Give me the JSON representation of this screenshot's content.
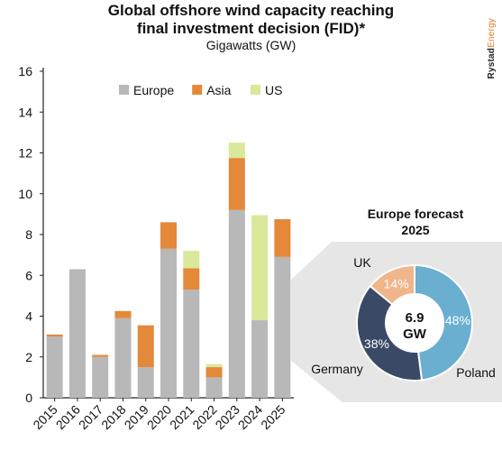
{
  "title_line1": "Global offshore wind capacity reaching",
  "title_line2": "final investment decision (FID)*",
  "subtitle": "Gigawatts (GW)",
  "brand": {
    "part1": "Rystad",
    "part2": "Energy"
  },
  "colors": {
    "europe": "#b8b8b8",
    "asia": "#e4883a",
    "us": "#d9e89a",
    "uk": "#f0b58a",
    "germany": "#3a4a66",
    "poland": "#6aaed0"
  },
  "chart_data": [
    {
      "type": "bar",
      "stacked": true,
      "categories": [
        "2015",
        "2016",
        "2017",
        "2018",
        "2019",
        "2020",
        "2021",
        "2022",
        "2023",
        "2024",
        "2025"
      ],
      "series": [
        {
          "name": "Europe",
          "color": "#b8b8b8",
          "values": [
            3.0,
            6.3,
            2.0,
            3.9,
            1.5,
            7.3,
            5.3,
            1.0,
            9.2,
            3.8,
            6.9
          ]
        },
        {
          "name": "Asia",
          "color": "#e4883a",
          "values": [
            0.1,
            0,
            0.1,
            0.35,
            2.05,
            1.3,
            1.05,
            0.5,
            2.55,
            0,
            1.85
          ]
        },
        {
          "name": "US",
          "color": "#d9e89a",
          "values": [
            0,
            0,
            0,
            0,
            0,
            0,
            0.85,
            0.15,
            0.75,
            5.15,
            0
          ]
        }
      ],
      "yticks": [
        0,
        2,
        4,
        6,
        8,
        10,
        12,
        14,
        16
      ],
      "ylim": [
        0,
        16
      ],
      "legend": "top-left"
    },
    {
      "type": "pie",
      "variant": "donut",
      "title_line1": "Europe forecast",
      "title_line2": "2025",
      "center_value": "6.9",
      "center_unit": "GW",
      "slices": [
        {
          "name": "UK",
          "percent": 14,
          "label": "14%",
          "color": "#f0b58a"
        },
        {
          "name": "Poland",
          "percent": 48,
          "label": "48%",
          "color": "#6aaed0"
        },
        {
          "name": "Germany",
          "percent": 38,
          "label": "38%",
          "color": "#3a4a66"
        }
      ]
    }
  ]
}
